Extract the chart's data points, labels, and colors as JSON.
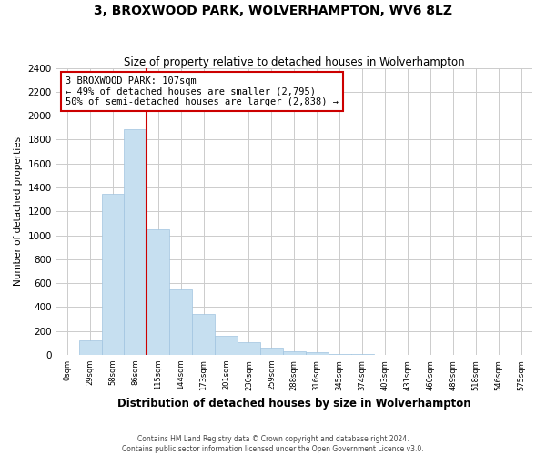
{
  "title": "3, BROXWOOD PARK, WOLVERHAMPTON, WV6 8LZ",
  "subtitle": "Size of property relative to detached houses in Wolverhampton",
  "xlabel": "Distribution of detached houses by size in Wolverhampton",
  "ylabel": "Number of detached properties",
  "bar_color": "#c6dff0",
  "bar_edge_color": "#a0c4e0",
  "bin_labels": [
    "0sqm",
    "29sqm",
    "58sqm",
    "86sqm",
    "115sqm",
    "144sqm",
    "173sqm",
    "201sqm",
    "230sqm",
    "259sqm",
    "288sqm",
    "316sqm",
    "345sqm",
    "374sqm",
    "403sqm",
    "431sqm",
    "460sqm",
    "489sqm",
    "518sqm",
    "546sqm",
    "575sqm"
  ],
  "bin_values": [
    0,
    125,
    1350,
    1890,
    1050,
    550,
    340,
    160,
    105,
    60,
    30,
    20,
    10,
    5,
    3,
    2,
    1,
    1,
    0,
    0,
    0
  ],
  "bar_width": 1.0,
  "ylim": [
    0,
    2400
  ],
  "yticks": [
    0,
    200,
    400,
    600,
    800,
    1000,
    1200,
    1400,
    1600,
    1800,
    2000,
    2200,
    2400
  ],
  "property_line_x": 4,
  "property_line_color": "#cc0000",
  "annotation_title": "3 BROXWOOD PARK: 107sqm",
  "annotation_line1": "← 49% of detached houses are smaller (2,795)",
  "annotation_line2": "50% of semi-detached houses are larger (2,838) →",
  "annotation_box_color": "#ffffff",
  "annotation_box_edge": "#cc0000",
  "background_color": "#ffffff",
  "grid_color": "#cccccc",
  "footer_line1": "Contains HM Land Registry data © Crown copyright and database right 2024.",
  "footer_line2": "Contains public sector information licensed under the Open Government Licence v3.0."
}
